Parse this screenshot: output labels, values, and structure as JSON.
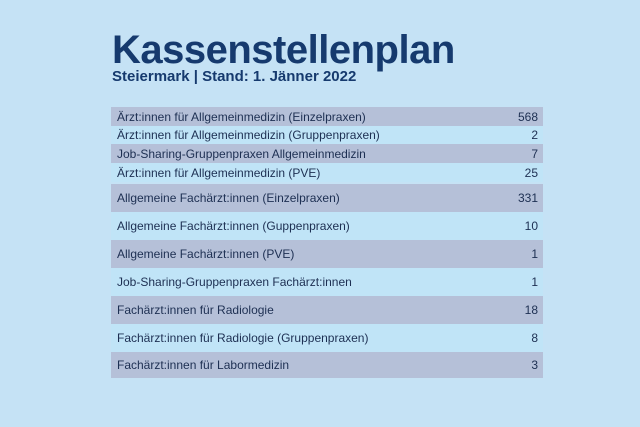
{
  "header": {
    "title": "Kassenstellenplan",
    "subtitle": "Steiermark | Stand: 1. Jänner 2022"
  },
  "rows": [
    {
      "label": "Ärzt:innen für Allgemeinmedizin (Einzelpraxen)",
      "value": "568"
    },
    {
      "label": "Ärzt:innen für Allgemeinmedizin (Gruppenpraxen)",
      "value": "2"
    },
    {
      "label": "Job-Sharing-Gruppenpraxen Allgemeinmedizin",
      "value": "7"
    },
    {
      "label": "Ärzt:innen für Allgemeinmedizin (PVE)",
      "value": "25"
    },
    {
      "label": "Allgemeine Fachärzt:innen (Einzelpraxen)",
      "value": "331"
    },
    {
      "label": "Allgemeine Fachärzt:innen (Guppenpraxen)",
      "value": "10"
    },
    {
      "label": "Allgemeine Fachärzt:innen (PVE)",
      "value": "1"
    },
    {
      "label": "Job-Sharing-Gruppenpraxen Fachärzt:innen",
      "value": "1"
    },
    {
      "label": "Fachärzt:innen für Radiologie",
      "value": "18"
    },
    {
      "label": "Fachärzt:innen für Radiologie (Gruppenpraxen)",
      "value": "8"
    },
    {
      "label": "Fachärzt:innen für Labormedizin",
      "value": "3"
    }
  ]
}
